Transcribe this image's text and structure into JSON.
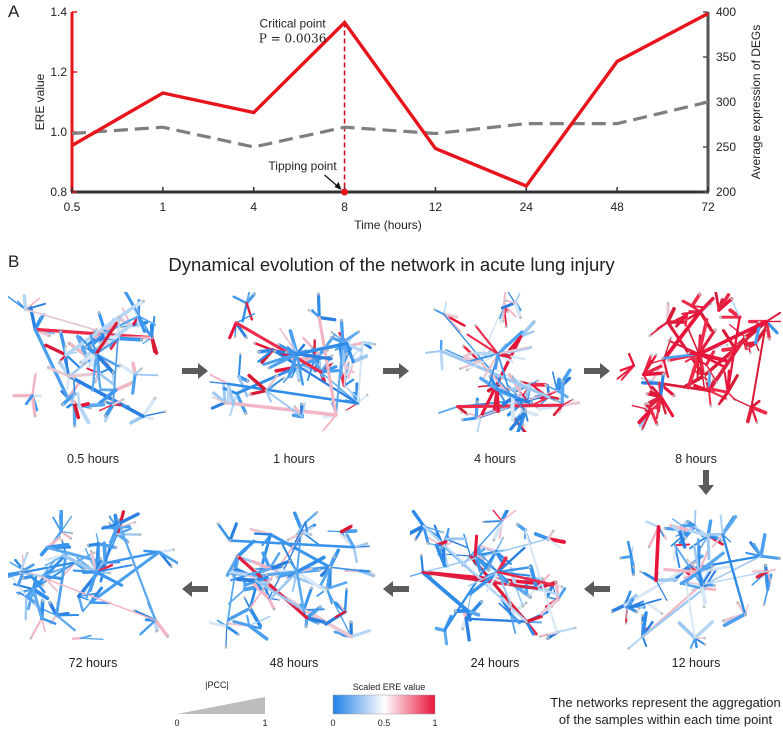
{
  "panel_labels": {
    "a": "A",
    "b": "B"
  },
  "chart_data": {
    "type": "line",
    "title": "",
    "categories": [
      "0.5",
      "1",
      "4",
      "8",
      "12",
      "24",
      "48",
      "72"
    ],
    "xlabel": "Time (hours)",
    "ylabel": "ERE value",
    "ylabel_right": "Average expression of DEGs",
    "ylim": [
      0.8,
      1.4
    ],
    "ylim_right": [
      200,
      400
    ],
    "yticks": [
      "0.8",
      "1.0",
      "1.2",
      "1.4"
    ],
    "yticks_right": [
      "200",
      "250",
      "300",
      "350",
      "400"
    ],
    "series": [
      {
        "name": "ERE value",
        "axis": "left",
        "color": "#e8141c",
        "style": "solid",
        "values": [
          0.955,
          1.13,
          1.065,
          1.365,
          0.945,
          0.82,
          1.235,
          1.395
        ]
      },
      {
        "name": "Average expression of DEGs",
        "axis": "right",
        "color": "#7f7f7f",
        "style": "dashed",
        "values": [
          265,
          272,
          250,
          272,
          265,
          276,
          276,
          300
        ]
      }
    ],
    "annotations": {
      "critical_point": "Critical point",
      "p_value": "P = 0.0036",
      "tipping_point": "Tipping point",
      "critical_index": 3
    }
  },
  "network_title": "Dynamical evolution of the network in acute lung injury",
  "networks": [
    {
      "label": "0.5 hours",
      "red_fraction": 0.08,
      "light_fraction": 0.35,
      "seed": 11
    },
    {
      "label": "1 hours",
      "red_fraction": 0.1,
      "light_fraction": 0.38,
      "seed": 23
    },
    {
      "label": "4 hours",
      "red_fraction": 0.22,
      "light_fraction": 0.45,
      "seed": 37
    },
    {
      "label": "8 hours",
      "red_fraction": 0.92,
      "light_fraction": 0.05,
      "seed": 41
    },
    {
      "label": "12 hours",
      "red_fraction": 0.1,
      "light_fraction": 0.45,
      "seed": 53
    },
    {
      "label": "24 hours",
      "red_fraction": 0.05,
      "light_fraction": 0.3,
      "seed": 67
    },
    {
      "label": "48 hours",
      "red_fraction": 0.03,
      "light_fraction": 0.22,
      "seed": 79
    },
    {
      "label": "72 hours",
      "red_fraction": 0.03,
      "light_fraction": 0.18,
      "seed": 83
    }
  ],
  "legend": {
    "pcc_title": "|PCC|",
    "pcc_min": "0",
    "pcc_max": "1",
    "ere_title": "Scaled ERE value",
    "ere_ticks": [
      "0",
      "0.5",
      "1"
    ],
    "note_line1": "The networks represent the aggregation",
    "note_line2": "of the samples within each time point"
  },
  "colors": {
    "red": "#e8141c",
    "gray": "#7f7f7f",
    "axis_right": "#555555",
    "blue": "#2f8ce8"
  }
}
